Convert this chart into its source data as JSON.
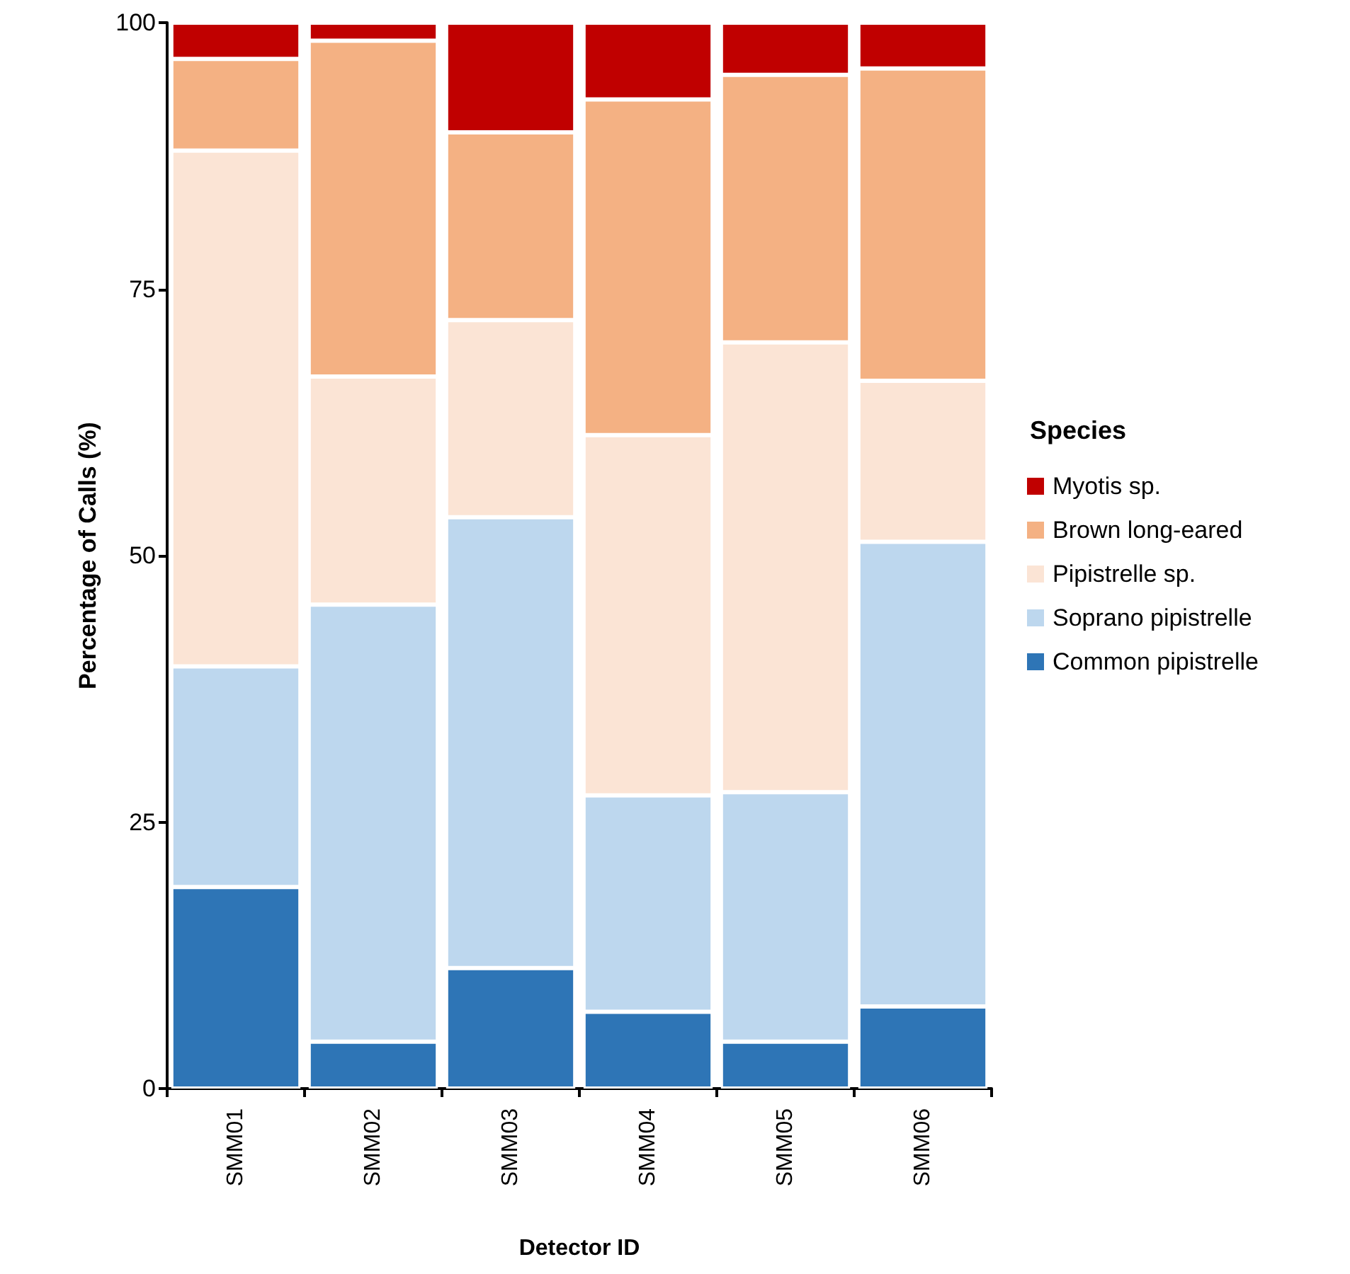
{
  "chart_data": {
    "type": "bar",
    "stacked": true,
    "xlabel": "Detector ID",
    "ylabel": "Percentage of Calls (%)",
    "legend_title": "Species",
    "legend": "right",
    "categories": [
      "SMM01",
      "SMM02",
      "SMM03",
      "SMM04",
      "SMM05",
      "SMM06"
    ],
    "series": [
      {
        "name": "Common pipistrelle",
        "color": "#2e75b6",
        "values": [
          18.9,
          4.4,
          11.3,
          7.2,
          4.4,
          7.7
        ]
      },
      {
        "name": "Soprano pipistrelle",
        "color": "#bdd7ee",
        "values": [
          20.7,
          41.0,
          42.3,
          20.3,
          23.4,
          43.6
        ]
      },
      {
        "name": "Pipistrelle sp.",
        "color": "#fbe4d5",
        "values": [
          48.4,
          21.4,
          18.5,
          33.8,
          42.2,
          15.1
        ]
      },
      {
        "name": "Brown long-eared",
        "color": "#f4b183",
        "values": [
          8.6,
          31.5,
          17.6,
          31.5,
          25.1,
          29.3
        ]
      },
      {
        "name": "Myotis sp.",
        "color": "#c00000",
        "values": [
          3.4,
          1.7,
          10.3,
          7.2,
          4.9,
          4.3
        ]
      }
    ],
    "ylim": [
      0,
      100
    ],
    "yticks": [
      0,
      25,
      50,
      75,
      100
    ],
    "grid": false
  }
}
